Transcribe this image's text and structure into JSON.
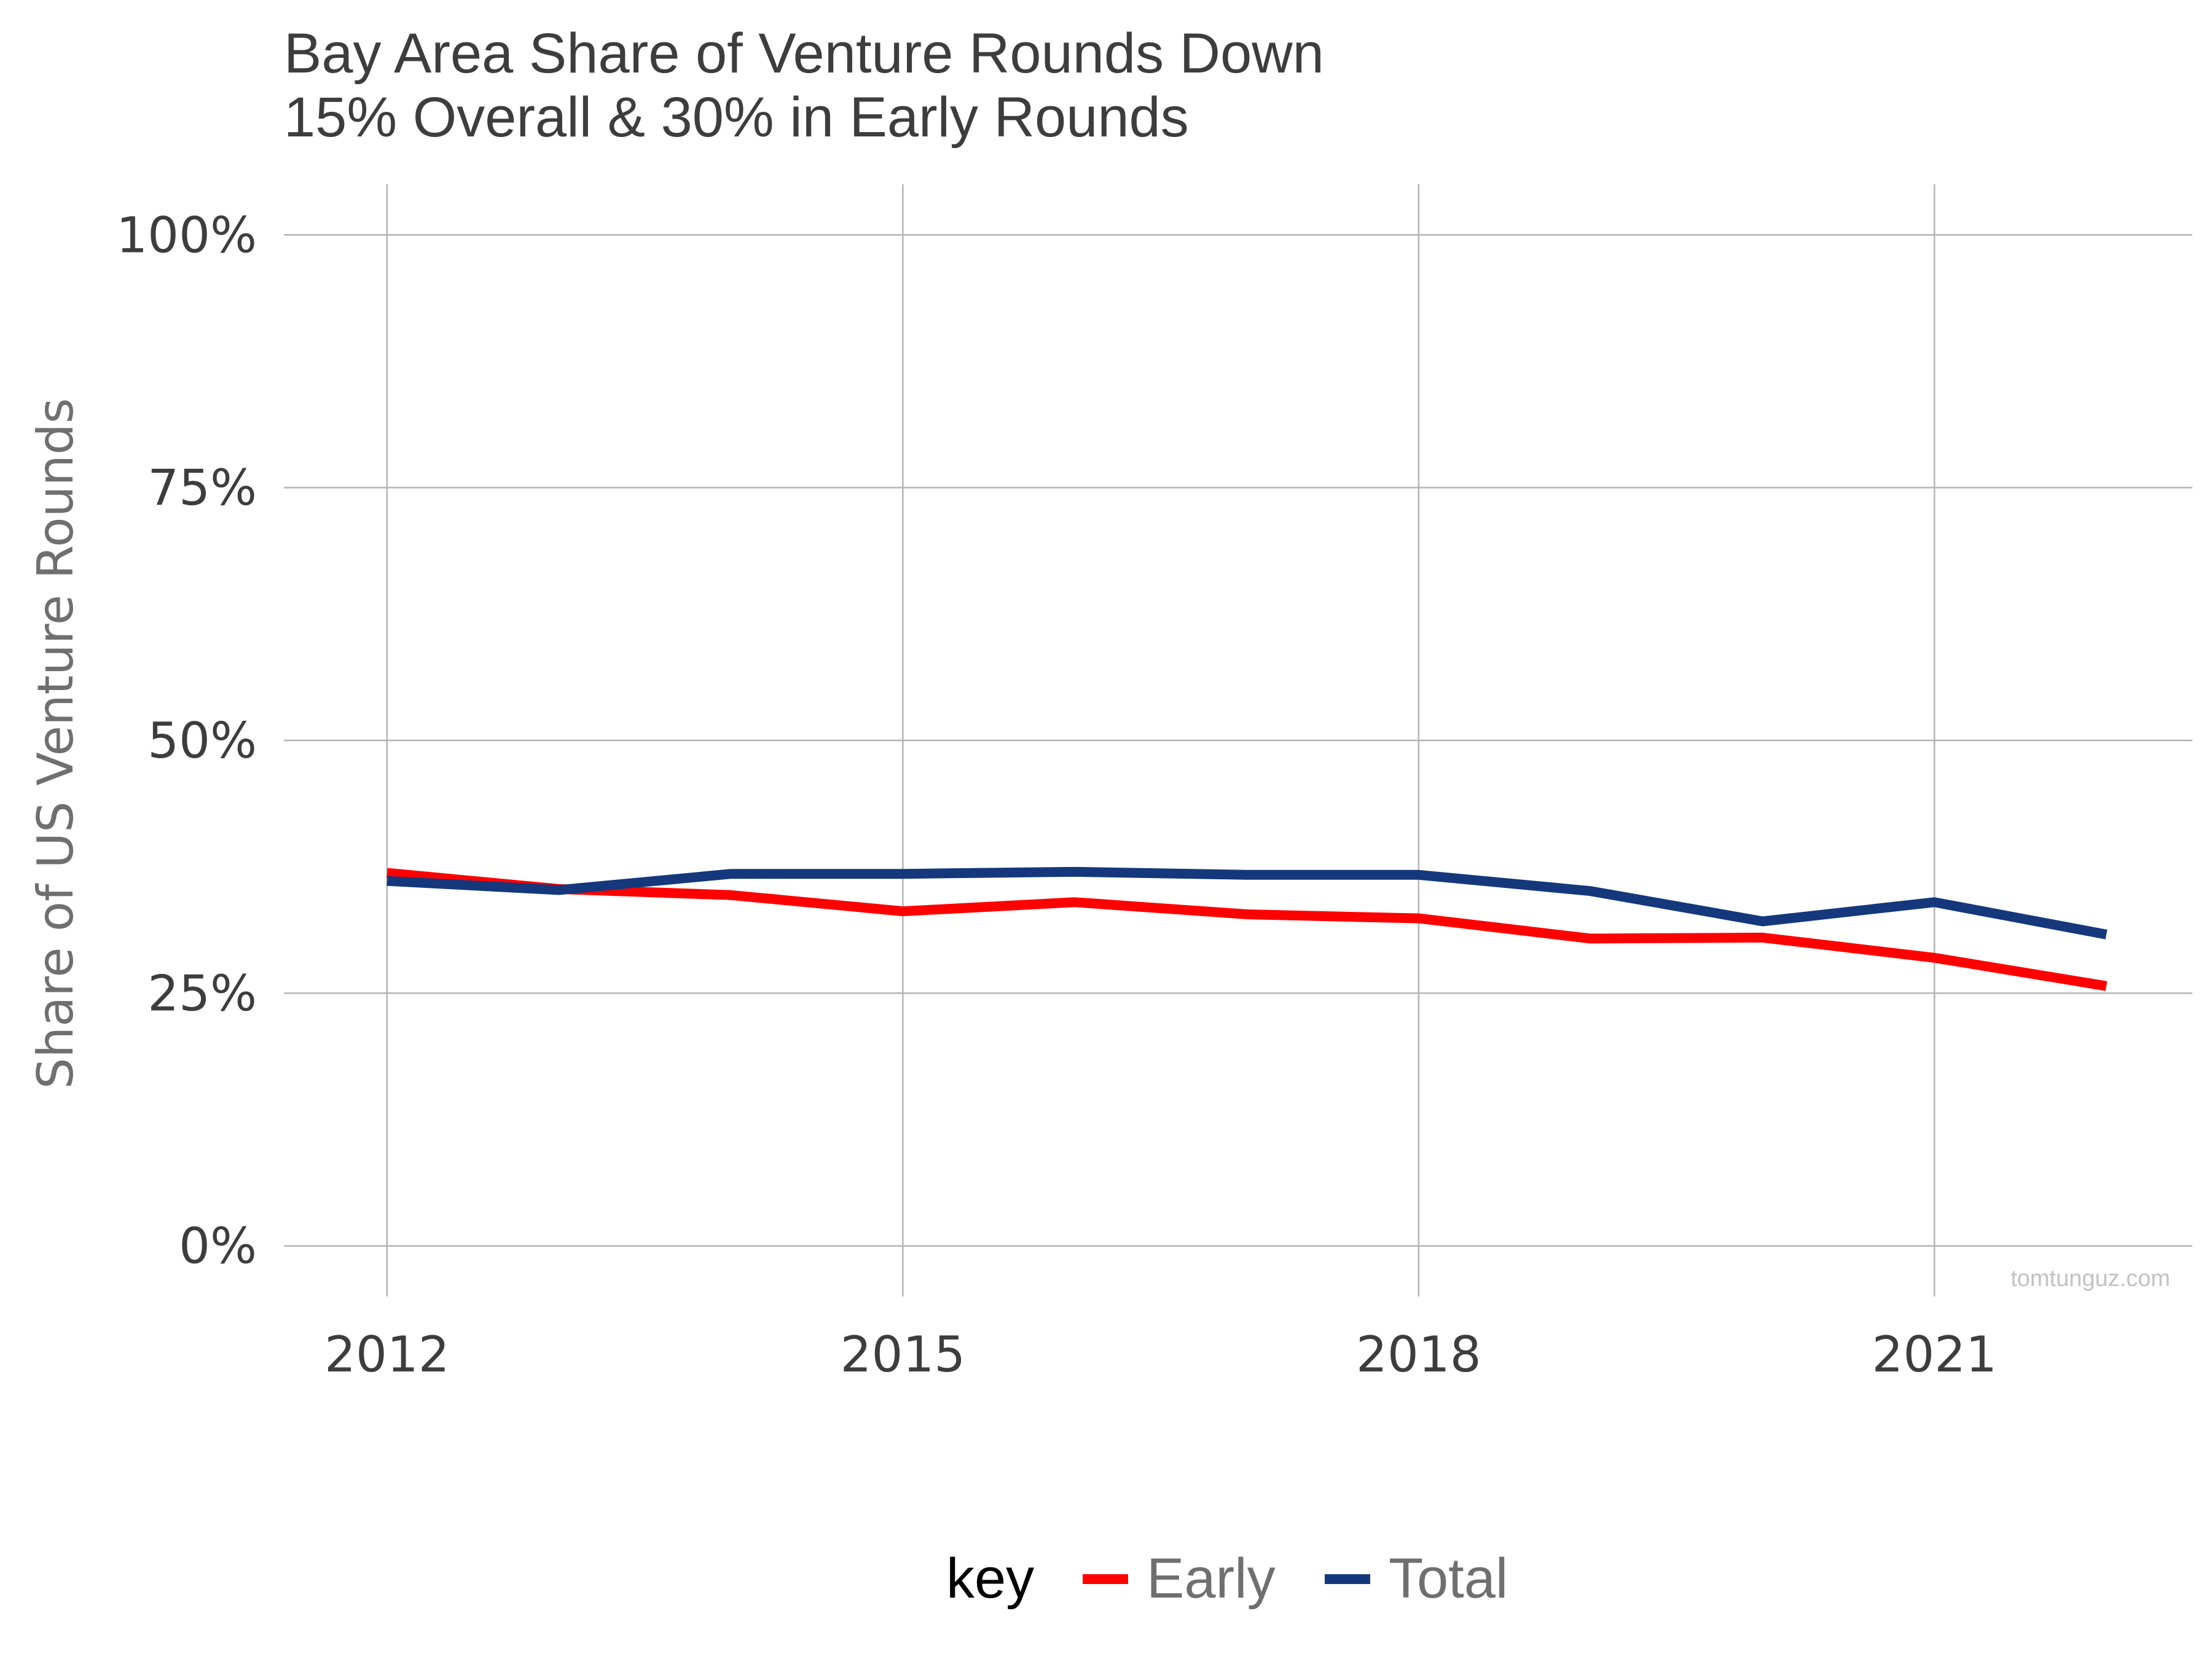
{
  "watermark": "tomtunguz.com",
  "legend_title": "key",
  "chart_data": {
    "type": "line",
    "title_lines": [
      "Bay Area Share of Venture Rounds Down",
      "15% Overall & 30% in Early Rounds"
    ],
    "xlabel": "",
    "ylabel": "Share of US Venture Rounds",
    "x": [
      2012,
      2013,
      2014,
      2015,
      2016,
      2017,
      2018,
      2019,
      2020,
      2021,
      2022
    ],
    "x_ticks": [
      2012,
      2015,
      2018,
      2021
    ],
    "x_tick_labels": [
      "2012",
      "2015",
      "2018",
      "2021"
    ],
    "xlim": [
      2011.4,
      2022.5
    ],
    "y_ticks": [
      0,
      0.25,
      0.5,
      0.75,
      1.0
    ],
    "y_tick_labels": [
      "0%",
      "25%",
      "50%",
      "75%",
      "100%"
    ],
    "ylim": [
      -0.05,
      1.05
    ],
    "grid": true,
    "legend_position": "bottom",
    "series": [
      {
        "name": "Early",
        "color": "#ff0000",
        "values": [
          0.369,
          0.353,
          0.347,
          0.331,
          0.34,
          0.328,
          0.324,
          0.304,
          0.305,
          0.285,
          0.257
        ]
      },
      {
        "name": "Total",
        "color": "#14387b",
        "values": [
          0.361,
          0.352,
          0.368,
          0.368,
          0.37,
          0.367,
          0.367,
          0.351,
          0.321,
          0.34,
          0.308
        ]
      }
    ]
  }
}
